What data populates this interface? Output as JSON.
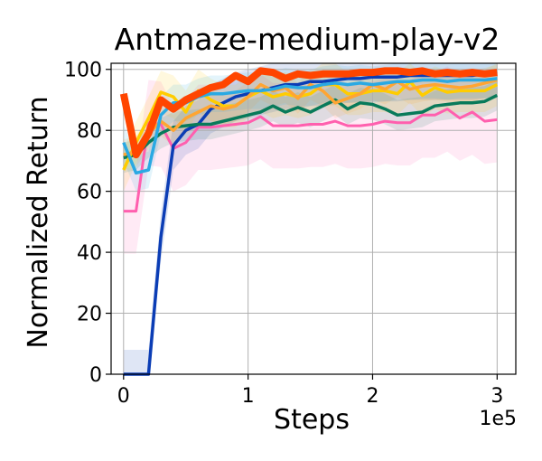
{
  "chart_data": {
    "type": "line",
    "title": "Antmaze-medium-play-v2",
    "xlabel": "Steps",
    "ylabel": "Normalized Return",
    "x_offset_label": "1e5",
    "xlim": [
      -0.1,
      3.15
    ],
    "ylim": [
      0,
      102
    ],
    "x_ticks": [
      0,
      1,
      2,
      3
    ],
    "x_tick_labels": [
      "0",
      "1",
      "2",
      "3"
    ],
    "y_ticks": [
      0,
      20,
      40,
      60,
      80,
      100
    ],
    "y_tick_labels": [
      "0",
      "20",
      "40",
      "60",
      "80",
      "100"
    ],
    "grid": true,
    "legend": "none",
    "x": [
      0,
      0.1,
      0.2,
      0.3,
      0.4,
      0.5,
      0.6,
      0.7,
      0.8,
      0.9,
      1.0,
      1.1,
      1.2,
      1.3,
      1.4,
      1.5,
      1.6,
      1.7,
      1.8,
      1.9,
      2.0,
      2.1,
      2.2,
      2.3,
      2.4,
      2.5,
      2.6,
      2.7,
      2.8,
      2.9,
      3.0
    ],
    "series": [
      {
        "color": "#ff5fae",
        "width": 3,
        "band": 14,
        "values": [
          53.5,
          53.5,
          82.5,
          82,
          74,
          76,
          81,
          81,
          81.5,
          82,
          82.5,
          84.5,
          81.5,
          81.5,
          81.5,
          82,
          82,
          83,
          81.5,
          81.5,
          82,
          83,
          82.5,
          82.5,
          85,
          85,
          87,
          84,
          86,
          83,
          83.5
        ]
      },
      {
        "color": "#0b3db5",
        "width": 3.5,
        "band": 8,
        "values": [
          0,
          0,
          0,
          45,
          75,
          80,
          82,
          87,
          89,
          91,
          92,
          93,
          94,
          95,
          95,
          96,
          96,
          96.5,
          97,
          97,
          97.5,
          97.5,
          97.5,
          98,
          98,
          98,
          98,
          98,
          98,
          98.5,
          98.5
        ]
      },
      {
        "color": "#087a5a",
        "width": 3.5,
        "band": 5,
        "values": [
          71,
          72,
          76,
          79,
          81,
          81.5,
          82,
          82,
          83,
          84,
          85,
          86,
          88,
          86,
          87.5,
          86,
          88,
          90,
          87,
          89,
          88.5,
          87,
          85,
          85.5,
          86,
          88,
          88.5,
          89,
          89,
          89.5,
          91.5
        ]
      },
      {
        "color": "#ffcc00",
        "width": 3.5,
        "band": 7,
        "values": [
          67,
          76,
          84,
          92.5,
          91,
          86,
          93,
          90,
          88,
          88,
          91,
          93,
          91,
          92,
          91,
          92,
          95,
          95,
          92,
          92,
          93,
          93,
          92,
          96,
          91.5,
          94,
          92.5,
          93,
          93,
          93,
          95
        ]
      },
      {
        "color": "#ffa532",
        "width": 3.5,
        "band": 5,
        "values": [
          72,
          73,
          79,
          83,
          80,
          84,
          86,
          88,
          87,
          88,
          91,
          95,
          93,
          94,
          90.5,
          95,
          93,
          89,
          90.5,
          92,
          95,
          93.5,
          96,
          93.5,
          94.5,
          95,
          94.5,
          94,
          94.5,
          95.5,
          96.5
        ]
      },
      {
        "color": "#2aa9e3",
        "width": 3.5,
        "band": 6,
        "values": [
          76,
          66,
          67,
          85,
          89,
          89,
          91,
          92,
          92,
          92.5,
          93,
          93,
          93.5,
          94.5,
          94,
          94,
          95,
          95.5,
          95,
          95.5,
          95,
          95.5,
          96,
          96,
          96.5,
          96.5,
          96,
          96.5,
          96.5,
          96.5,
          97
        ]
      },
      {
        "color": "#ff4500",
        "width": 8,
        "band": 0,
        "values": [
          92,
          72,
          79,
          90,
          87,
          90,
          92,
          94,
          95,
          98,
          96,
          99.5,
          99,
          97,
          98.5,
          98,
          98.5,
          98.5,
          98.5,
          99,
          99,
          99.5,
          99.5,
          99,
          99.5,
          98.5,
          99,
          98.5,
          99,
          98.5,
          99
        ]
      }
    ]
  }
}
